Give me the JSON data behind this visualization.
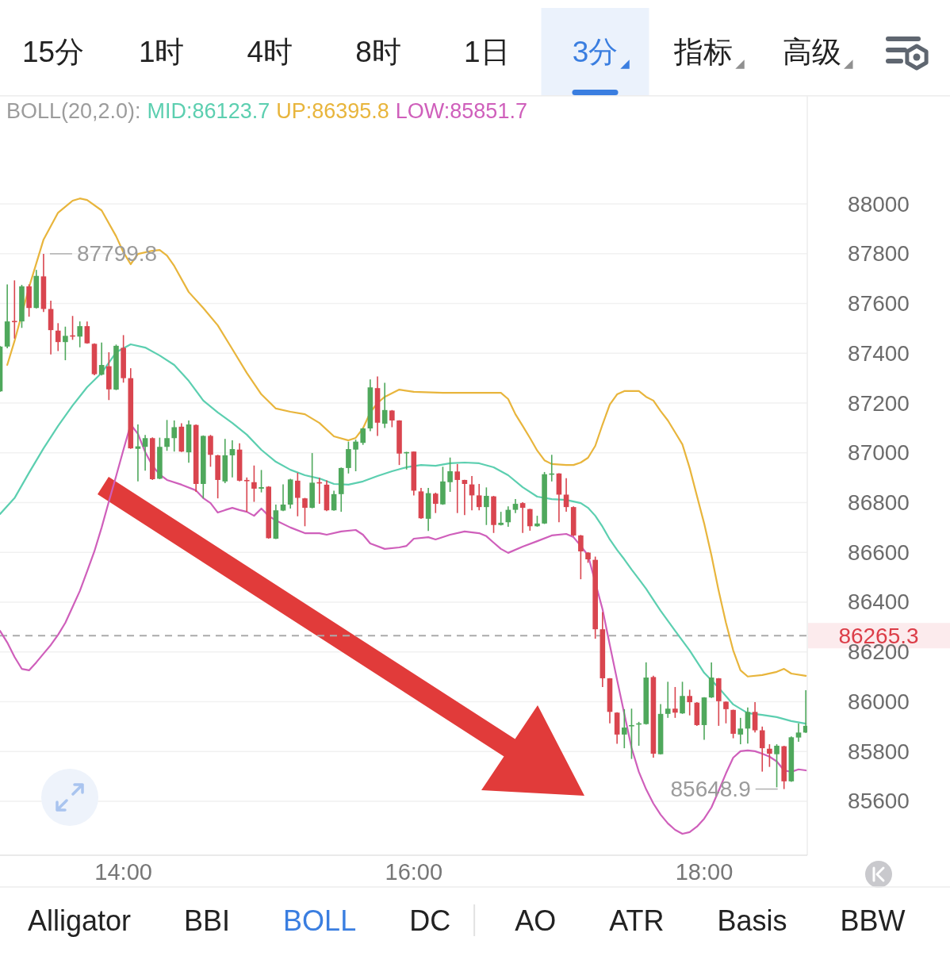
{
  "chart_data": [
    {
      "type": "other",
      "categories": [
        "15分",
        "1时",
        "4时",
        "8时",
        "1日",
        "3分◢",
        "指标◢",
        "高级◢"
      ],
      "colors": [
        "#222222",
        "#222222",
        "#222222",
        "#222222",
        "#222222",
        "#3a7ee0",
        "#222222",
        "#222222"
      ]
    },
    {
      "type": "candlestick",
      "legend_title": "BOLL(20,2.0):",
      "legend": "top left",
      "grid": "y",
      "xlim": [
        13.15,
        18.71
      ],
      "xticks": [
        {
          "value": 14,
          "label": "14:00"
        },
        {
          "value": 16,
          "label": "16:00"
        },
        {
          "value": 18,
          "label": "18:00"
        }
      ],
      "ylim": [
        85383,
        88437
      ],
      "yticks": [
        85600,
        85800,
        86000,
        86200,
        86400,
        86600,
        86800,
        87000,
        87200,
        87400,
        87600,
        87800,
        88000
      ],
      "x": [
        13.15,
        13.2,
        13.25,
        13.3,
        13.35,
        13.4,
        13.45,
        13.5,
        13.55,
        13.6,
        13.65,
        13.7,
        13.75,
        13.8,
        13.85,
        13.9,
        13.95,
        14,
        14.05,
        14.1,
        14.15,
        14.2,
        14.25,
        14.3,
        14.35,
        14.4,
        14.45,
        14.5,
        14.55,
        14.6,
        14.65,
        14.7,
        14.75,
        14.8,
        14.85,
        14.9,
        14.95,
        15,
        15.05,
        15.1,
        15.15,
        15.2,
        15.25,
        15.3,
        15.35,
        15.4,
        15.45,
        15.5,
        15.55,
        15.6,
        15.65,
        15.7,
        15.75,
        15.8,
        15.85,
        15.9,
        15.95,
        16,
        16.05,
        16.1,
        16.15,
        16.2,
        16.25,
        16.3,
        16.35,
        16.4,
        16.45,
        16.5,
        16.55,
        16.6,
        16.65,
        16.7,
        16.75,
        16.8,
        16.85,
        16.9,
        16.95,
        17,
        17.05,
        17.1,
        17.15,
        17.2,
        17.25,
        17.3,
        17.35,
        17.4,
        17.45,
        17.5,
        17.55,
        17.6,
        17.65,
        17.7,
        17.75,
        17.8,
        17.85,
        17.9,
        17.95,
        18,
        18.05,
        18.1,
        18.15,
        18.2,
        18.25,
        18.3,
        18.35,
        18.4,
        18.45,
        18.5,
        18.55,
        18.6,
        18.65,
        18.7
      ],
      "ohlc": [
        [
          87247,
          87430,
          87245,
          87427
        ],
        [
          87427,
          87677,
          87420,
          87528
        ],
        [
          87530,
          87693,
          87459,
          87525
        ],
        [
          87528,
          87675,
          87502,
          87669
        ],
        [
          87669,
          87677,
          87547,
          87582
        ],
        [
          87582,
          87735,
          87580,
          87711
        ],
        [
          87709,
          87799.8,
          87566,
          87578
        ],
        [
          87578,
          87611,
          87395,
          87493
        ],
        [
          87491,
          87521,
          87409,
          87445
        ],
        [
          87445,
          87507,
          87372,
          87470
        ],
        [
          87472,
          87550,
          87454,
          87468
        ],
        [
          87467,
          87528,
          87424,
          87509
        ],
        [
          87509,
          87528,
          87438,
          87440
        ],
        [
          87438,
          87440,
          87312,
          87316
        ],
        [
          87314,
          87443,
          87311,
          87353
        ],
        [
          87348,
          87404,
          87212,
          87255
        ],
        [
          87254,
          87435,
          87252,
          87430
        ],
        [
          87422,
          87473,
          87282,
          87300
        ],
        [
          87300,
          87340,
          87016,
          87018
        ],
        [
          87016,
          87114,
          86885,
          87026
        ],
        [
          87024,
          87072,
          86928,
          87059
        ],
        [
          87059,
          87062,
          86891,
          86894
        ],
        [
          86896,
          87061,
          86894,
          87024
        ],
        [
          87024,
          87132,
          87008,
          87059
        ],
        [
          87059,
          87130,
          87005,
          87103
        ],
        [
          87105,
          87119,
          87003,
          87005
        ],
        [
          87002,
          87130,
          86960,
          87114
        ],
        [
          87112,
          87114,
          86843,
          86875
        ],
        [
          86875,
          87070,
          86817,
          87068
        ],
        [
          87068,
          87072,
          86944,
          86992
        ],
        [
          86990,
          86992,
          86817,
          86891
        ],
        [
          86885,
          87056,
          86878,
          86990
        ],
        [
          86990,
          87050,
          86901,
          87015
        ],
        [
          87013,
          87038,
          86885,
          86888
        ],
        [
          86891,
          86901,
          86763,
          86886
        ],
        [
          86882,
          86949,
          86803,
          86856
        ],
        [
          86856,
          86931,
          86841,
          86862
        ],
        [
          86864,
          86866,
          86655,
          86657
        ],
        [
          86655,
          86792,
          86653,
          86769
        ],
        [
          86768,
          86873,
          86766,
          86792
        ],
        [
          86792,
          86896,
          86776,
          86893
        ],
        [
          86888,
          86920,
          86745,
          86819
        ],
        [
          86817,
          86819,
          86705,
          86779
        ],
        [
          86779,
          86999,
          86777,
          86880
        ],
        [
          86882,
          86900,
          86795,
          86878
        ],
        [
          86872,
          86889,
          86766,
          86769
        ],
        [
          86769,
          86848,
          86767,
          86834
        ],
        [
          86834,
          86941,
          86763,
          86939
        ],
        [
          86939,
          87045,
          86917,
          87015
        ],
        [
          87013,
          87053,
          86926,
          87045
        ],
        [
          87040,
          87100,
          87032,
          87098
        ],
        [
          87098,
          87295,
          87087,
          87263
        ],
        [
          87260,
          87307,
          87068,
          87121
        ],
        [
          87117,
          87281,
          87100,
          87172
        ],
        [
          87170,
          87172,
          87103,
          87130
        ],
        [
          87130,
          87131,
          86951,
          86997
        ],
        [
          86999,
          87004,
          86933,
          87003
        ],
        [
          87005,
          87006,
          86829,
          86848
        ],
        [
          86845,
          86859,
          86735,
          86737
        ],
        [
          86735,
          86859,
          86686,
          86838
        ],
        [
          86836,
          86840,
          86758,
          86795
        ],
        [
          86793,
          86944,
          86791,
          86885
        ],
        [
          86882,
          86981,
          86843,
          86926
        ],
        [
          86925,
          86955,
          86758,
          86891
        ],
        [
          86891,
          86892,
          86750,
          86875
        ],
        [
          86873,
          86907,
          86769,
          86829
        ],
        [
          86829,
          86875,
          86769,
          86782
        ],
        [
          86782,
          86861,
          86710,
          86827
        ],
        [
          86825,
          86827,
          86678,
          86710
        ],
        [
          86710,
          86763,
          86708,
          86719
        ],
        [
          86721,
          86785,
          86703,
          86771
        ],
        [
          86771,
          86814,
          86758,
          86795
        ],
        [
          86798,
          86802,
          86678,
          86779
        ],
        [
          86774,
          86775,
          86687,
          86705
        ],
        [
          86705,
          86747,
          86703,
          86716
        ],
        [
          86716,
          86923,
          86714,
          86914
        ],
        [
          86914,
          86992,
          86885,
          86917
        ],
        [
          86917,
          86918,
          86721,
          86832
        ],
        [
          86832,
          86898,
          86763,
          86782
        ],
        [
          86782,
          86785,
          86665,
          86668
        ],
        [
          86668,
          86670,
          86492,
          86604
        ],
        [
          86599,
          86601,
          86558,
          86572
        ],
        [
          86570,
          86583,
          86253,
          86291
        ],
        [
          86291,
          86360,
          86059,
          86094
        ],
        [
          86094,
          86095,
          85913,
          85959
        ],
        [
          85956,
          85958,
          85831,
          85868
        ],
        [
          85868,
          85970,
          85813,
          85896
        ],
        [
          85902,
          85972,
          85770,
          85906
        ],
        [
          85910,
          85919,
          85823,
          85913
        ],
        [
          85910,
          86158,
          85908,
          86097
        ],
        [
          86099,
          86104,
          85775,
          85791
        ],
        [
          85789,
          85990,
          85788,
          85951
        ],
        [
          85951,
          86080,
          85935,
          85972
        ],
        [
          85972,
          86059,
          85935,
          85956
        ],
        [
          85953,
          86080,
          85951,
          86023
        ],
        [
          86023,
          86048,
          85945,
          85998
        ],
        [
          85996,
          85998,
          85903,
          85906
        ],
        [
          85906,
          86018,
          85847,
          86017
        ],
        [
          86017,
          86158,
          86015,
          86097
        ],
        [
          86094,
          86095,
          85903,
          86002
        ],
        [
          86000,
          86001,
          85913,
          85970
        ],
        [
          85967,
          85968,
          85853,
          85871
        ],
        [
          85868,
          85935,
          85829,
          85892
        ],
        [
          85892,
          85977,
          85832,
          85959
        ],
        [
          85959,
          85998,
          85876,
          85885
        ],
        [
          85885,
          85900,
          85719,
          85813
        ],
        [
          85811,
          85829,
          85738,
          85791
        ],
        [
          85789,
          85829,
          85656,
          85823
        ],
        [
          85821,
          85823,
          85648.9,
          85680
        ],
        [
          85680,
          85860,
          85678,
          85857
        ],
        [
          85856,
          85913,
          85839,
          85876
        ],
        [
          85876,
          86046,
          85875,
          85903
        ]
      ],
      "series": [
        {
          "name": "MID:86123.7",
          "type": "line",
          "color": "#5ccfb0",
          "x": [
            13.15,
            13.25,
            13.35,
            13.45,
            13.55,
            13.65,
            13.75,
            13.85,
            13.95,
            14.05,
            14.15,
            14.25,
            14.35,
            14.45,
            14.55,
            14.65,
            14.75,
            14.85,
            14.95,
            15.05,
            15.15,
            15.25,
            15.35,
            15.45,
            15.55,
            15.65,
            15.75,
            15.85,
            15.95,
            16.05,
            16.15,
            16.25,
            16.35,
            16.45,
            16.55,
            16.65,
            16.75,
            16.85,
            16.95,
            17.05,
            17.15,
            17.2,
            17.25,
            17.3,
            17.35,
            17.4,
            17.45,
            17.5,
            17.55,
            17.6,
            17.7,
            17.8,
            17.9,
            18,
            18.1,
            18.2,
            18.3,
            18.4,
            18.5,
            18.6,
            18.7
          ],
          "values": [
            86754,
            86818,
            86920,
            87018,
            87108,
            87190,
            87264,
            87321,
            87404,
            87436,
            87423,
            87391,
            87353,
            87289,
            87210,
            87162,
            87120,
            87073,
            87012,
            86964,
            86932,
            86910,
            86897,
            86875,
            86872,
            86885,
            86907,
            86926,
            86942,
            86951,
            86948,
            86958,
            86961,
            86958,
            86942,
            86910,
            86862,
            86824,
            86814,
            86811,
            86798,
            86779,
            86747,
            86703,
            86652,
            86610,
            86572,
            86531,
            86493,
            86454,
            86365,
            86285,
            86206,
            86116,
            86056,
            85989,
            85954,
            85947,
            85938,
            85922,
            85912
          ]
        },
        {
          "name": "UP:86395.8",
          "type": "line",
          "color": "#e8b53c",
          "x": [
            13.2,
            13.25,
            13.35,
            13.45,
            13.55,
            13.65,
            13.7,
            13.75,
            13.85,
            13.95,
            14,
            14.05,
            14.1,
            14.2,
            14.25,
            14.3,
            14.35,
            14.45,
            14.55,
            14.65,
            14.75,
            14.85,
            14.95,
            15.05,
            15.15,
            15.25,
            15.35,
            15.45,
            15.55,
            15.6,
            15.65,
            15.7,
            15.75,
            15.8,
            15.9,
            16,
            16.2,
            16.4,
            16.6,
            16.65,
            16.7,
            16.75,
            16.8,
            16.85,
            16.9,
            16.95,
            17.05,
            17.1,
            17.15,
            17.2,
            17.25,
            17.3,
            17.35,
            17.4,
            17.45,
            17.55,
            17.6,
            17.65,
            17.7,
            17.75,
            17.8,
            17.85,
            17.9,
            17.95,
            18,
            18.05,
            18.1,
            18.15,
            18.2,
            18.25,
            18.3,
            18.4,
            18.5,
            18.55,
            18.6,
            18.7
          ],
          "values": [
            87353,
            87449,
            87665,
            87857,
            87965,
            88013,
            88022,
            88016,
            87974,
            87870,
            87806,
            87758,
            87799,
            87812,
            87815,
            87793,
            87751,
            87646,
            87582,
            87512,
            87417,
            87321,
            87235,
            87178,
            87165,
            87155,
            87120,
            87066,
            87050,
            87060,
            87098,
            87162,
            87200,
            87225,
            87254,
            87245,
            87241,
            87241,
            87241,
            87216,
            87155,
            87108,
            87060,
            87009,
            86970,
            86955,
            86951,
            86951,
            86961,
            86980,
            87028,
            87114,
            87194,
            87235,
            87248,
            87248,
            87225,
            87210,
            87168,
            87130,
            87082,
            87034,
            86939,
            86827,
            86716,
            86588,
            86445,
            86317,
            86206,
            86126,
            86101,
            86107,
            86120,
            86132,
            86113,
            86104
          ]
        },
        {
          "name": "LOW:85851.7",
          "type": "line",
          "color": "#cf5fbb",
          "x": [
            13.15,
            13.2,
            13.25,
            13.3,
            13.35,
            13.4,
            13.45,
            13.5,
            13.55,
            13.6,
            13.65,
            13.7,
            13.75,
            13.8,
            13.85,
            13.9,
            13.95,
            14,
            14.05,
            14.1,
            14.15,
            14.2,
            14.25,
            14.3,
            14.4,
            14.5,
            14.55,
            14.6,
            14.65,
            14.7,
            14.75,
            14.8,
            14.85,
            14.9,
            14.95,
            15,
            15.05,
            15.15,
            15.25,
            15.35,
            15.4,
            15.5,
            15.6,
            15.65,
            15.7,
            15.8,
            15.9,
            15.95,
            16,
            16.1,
            16.15,
            16.25,
            16.35,
            16.45,
            16.5,
            16.55,
            16.6,
            16.65,
            16.75,
            16.85,
            16.95,
            17.05,
            17.1,
            17.15,
            17.2,
            17.3,
            17.35,
            17.4,
            17.45,
            17.5,
            17.55,
            17.6,
            17.65,
            17.7,
            17.75,
            17.8,
            17.85,
            17.9,
            17.95,
            18,
            18.05,
            18.1,
            18.15,
            18.2,
            18.25,
            18.3,
            18.35,
            18.4,
            18.45,
            18.5,
            18.55,
            18.6,
            18.65,
            18.7
          ],
          "values": [
            86285,
            86238,
            86180,
            86132,
            86126,
            86158,
            86193,
            86228,
            86269,
            86317,
            86381,
            86445,
            86524,
            86604,
            86700,
            86805,
            86907,
            87012,
            87114,
            87076,
            87003,
            86948,
            86913,
            86891,
            86872,
            86849,
            86818,
            86798,
            86760,
            86770,
            86779,
            86770,
            86763,
            86747,
            86776,
            86747,
            86728,
            86700,
            86677,
            86677,
            86671,
            86684,
            86690,
            86671,
            86636,
            86614,
            86620,
            86626,
            86655,
            86661,
            86652,
            86671,
            86684,
            86677,
            86665,
            86639,
            86614,
            86598,
            86623,
            86645,
            86668,
            86674,
            86661,
            86626,
            86588,
            86371,
            86228,
            86088,
            85951,
            85814,
            85718,
            85648,
            85591,
            85546,
            85511,
            85485,
            85469,
            85476,
            85498,
            85530,
            85575,
            85642,
            85712,
            85775,
            85801,
            85804,
            85801,
            85791,
            85779,
            85760,
            85724,
            85718,
            85728,
            85724
          ]
        }
      ],
      "ref_lines": [
        {
          "axis": "y",
          "value": 86265.3,
          "color": "#aaaaaa",
          "line_style": "dashed"
        }
      ],
      "annotations": [
        {
          "text": "87799.8",
          "x": 13.45,
          "y": 87799.8
        },
        {
          "text": "86265.3",
          "x": 18.71,
          "y": 86265.3
        },
        {
          "text": "85648.9",
          "x": 18.55,
          "y": 85648.9
        }
      ]
    },
    {
      "type": "other",
      "categories": [
        "Alligator",
        "BBI",
        "BOLL",
        "DC",
        "AO",
        "ATR",
        "Basis",
        "BBW"
      ],
      "colors": [
        "#222222",
        "#222222",
        "#3a7ee0",
        "#222222",
        "#222222",
        "#222222",
        "#222222",
        "#222222"
      ]
    }
  ]
}
